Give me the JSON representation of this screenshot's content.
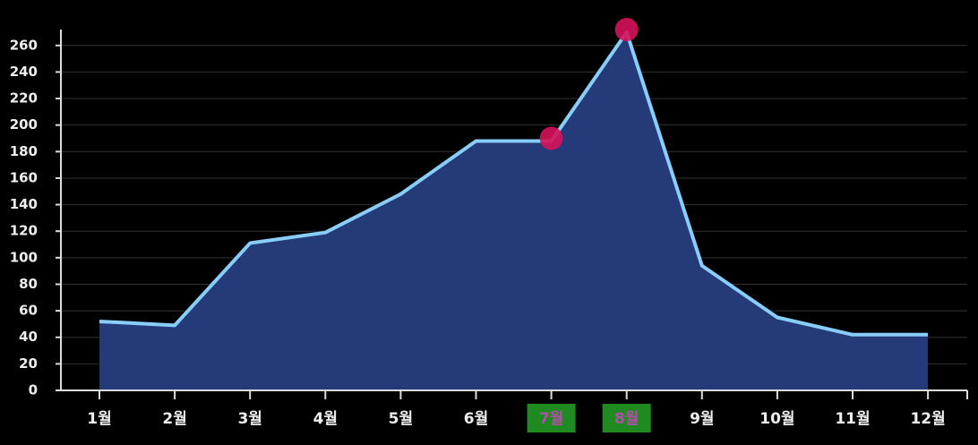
{
  "chart_data": {
    "type": "area",
    "categories": [
      "1월",
      "2월",
      "3월",
      "4월",
      "5월",
      "6월",
      "7월",
      "8월",
      "9월",
      "10월",
      "11월",
      "12월"
    ],
    "values": [
      52,
      49,
      111,
      119,
      148,
      188,
      188,
      270,
      94,
      55,
      42,
      42
    ],
    "color": "#87cefa",
    "fill": "#253a78",
    "marker_color": "#d6125a",
    "highlight": [
      6,
      7
    ],
    "ylim": [
      0,
      272
    ],
    "yticks": [
      0,
      20,
      40,
      60,
      80,
      100,
      120,
      140,
      160,
      180,
      200,
      220,
      240,
      260
    ],
    "grid": true
  }
}
